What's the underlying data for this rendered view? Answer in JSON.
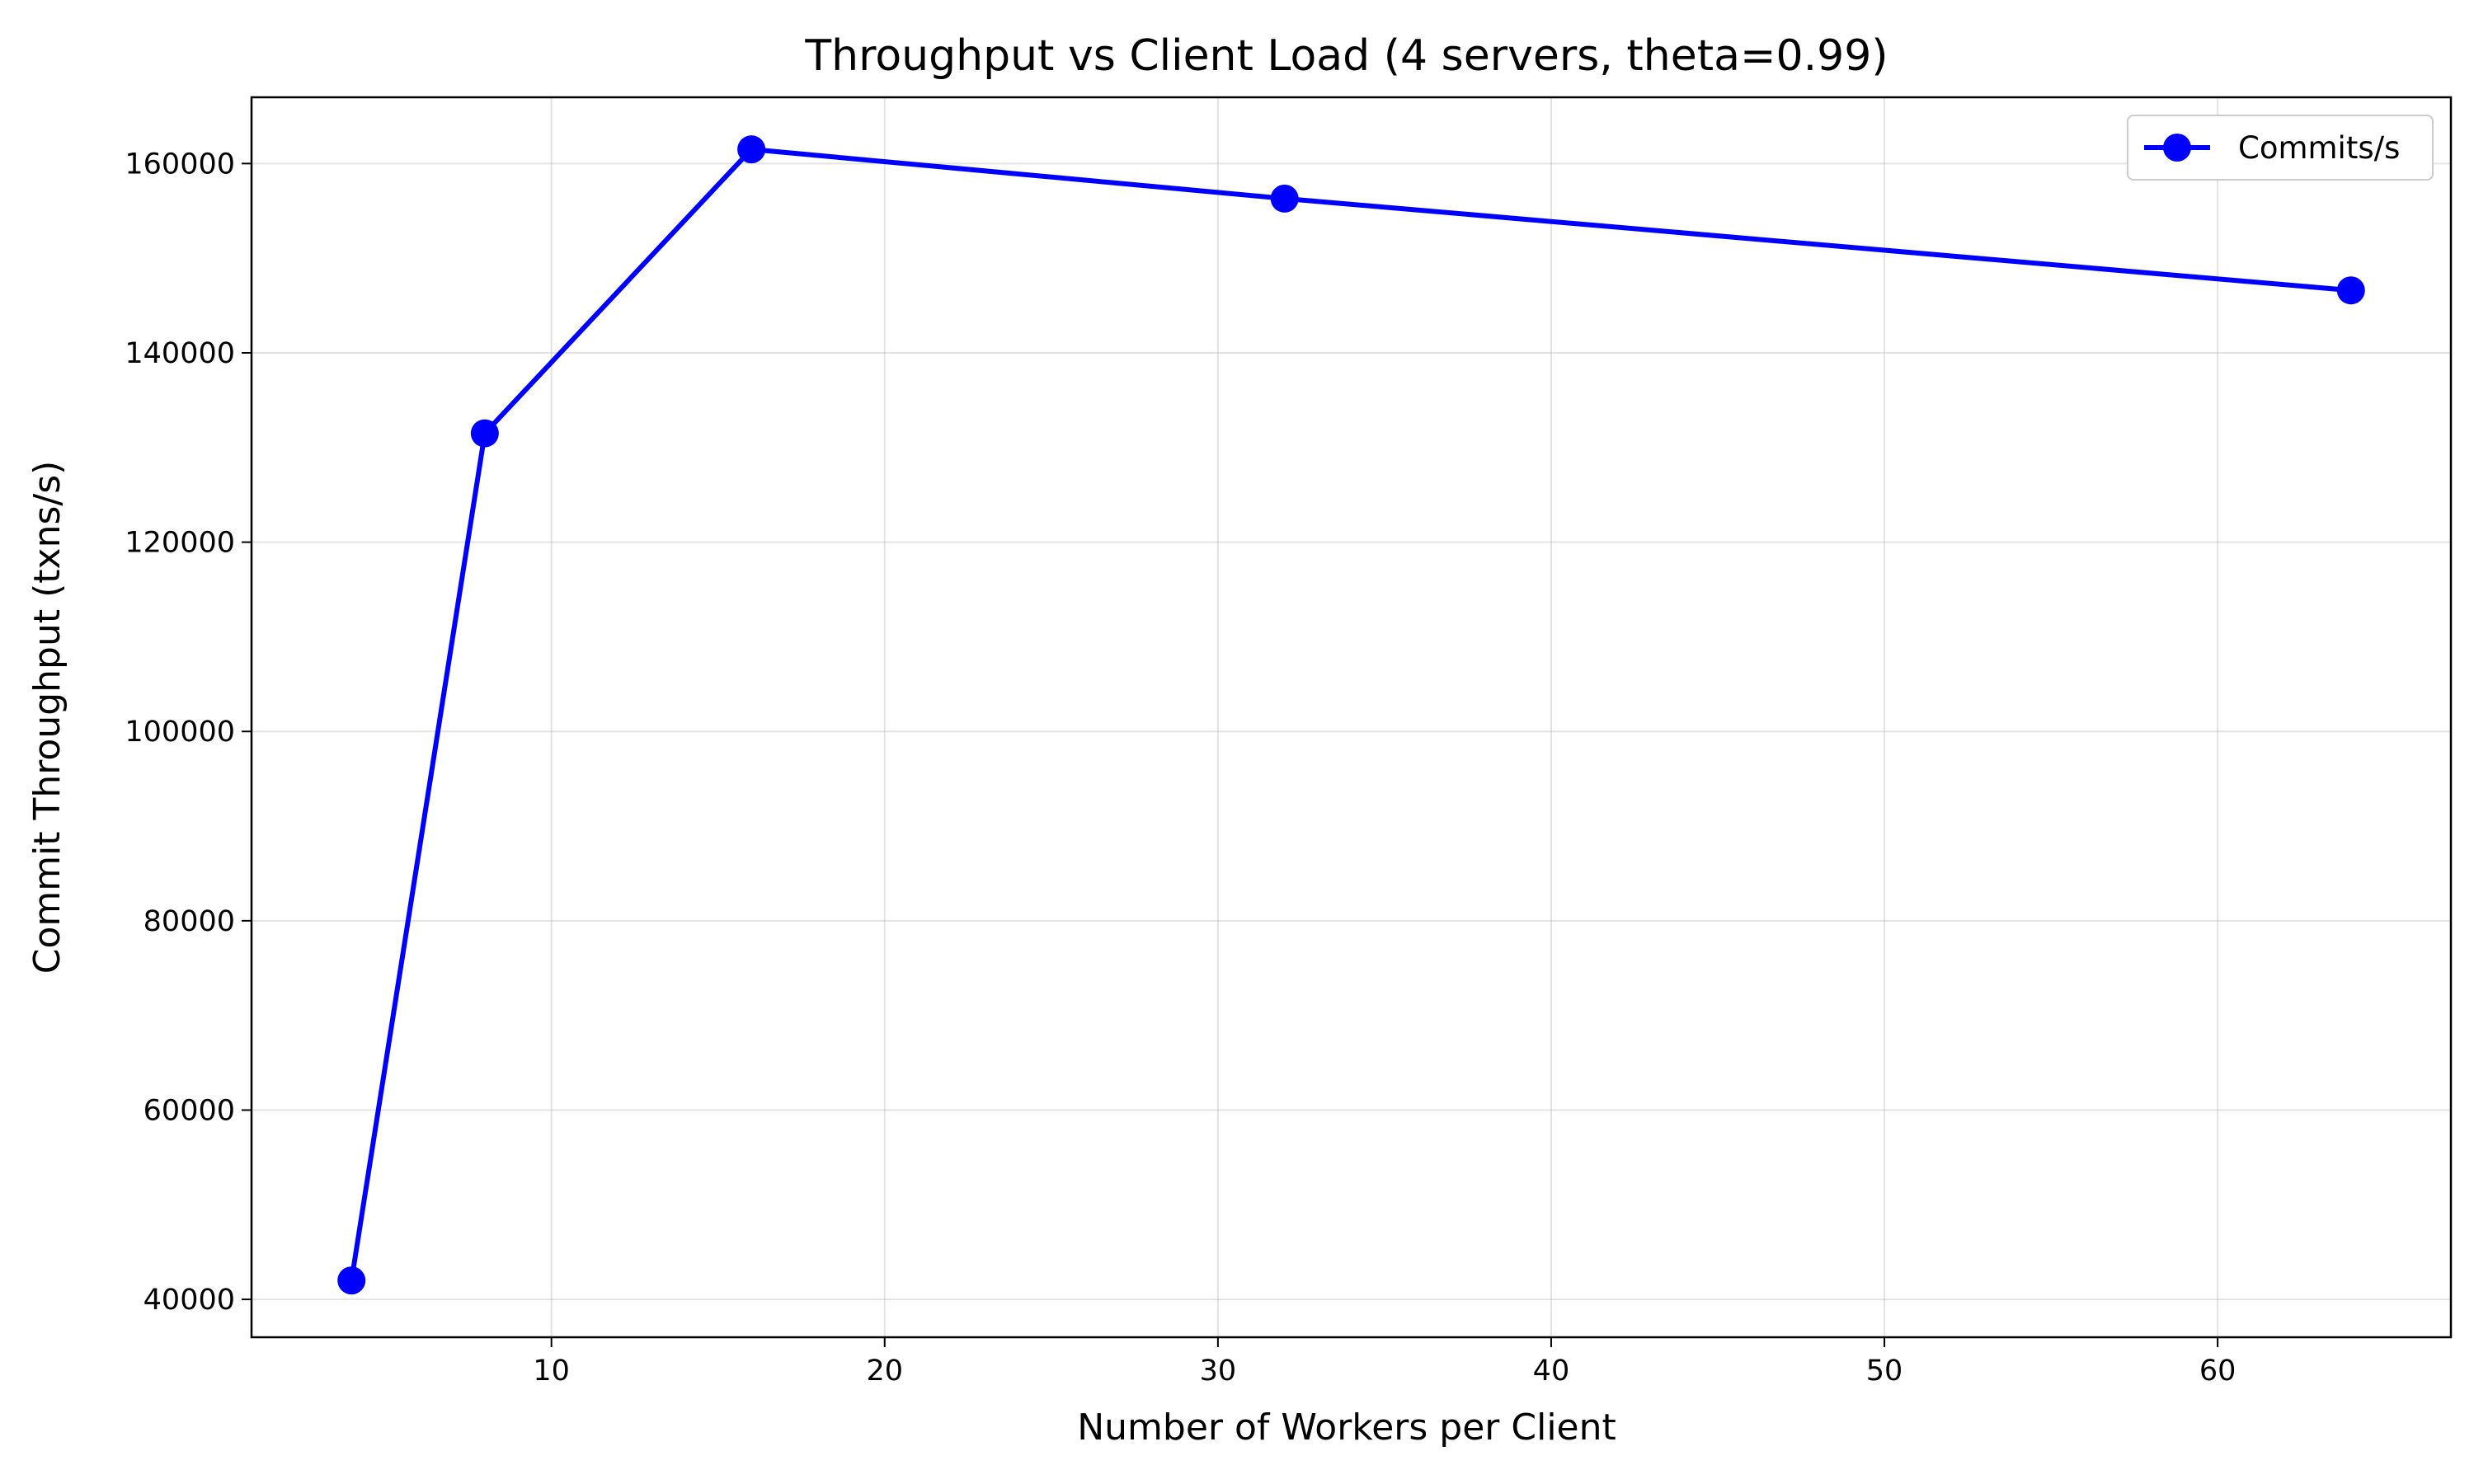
{
  "chart_data": {
    "type": "line",
    "title": "Throughput vs Client Load (4 servers, theta=0.99)",
    "xlabel": "Number of Workers per Client",
    "ylabel": "Commit Throughput (txns/s)",
    "xlim": [
      1,
      67
    ],
    "ylim": [
      36000,
      167000
    ],
    "x_ticks": [
      10,
      20,
      30,
      40,
      50,
      60
    ],
    "y_ticks": [
      40000,
      60000,
      80000,
      100000,
      120000,
      140000,
      160000
    ],
    "grid": true,
    "legend_position": "top-right",
    "series": [
      {
        "name": "Commits/s",
        "color": "#0000ff",
        "marker": "circle",
        "x": [
          4,
          8,
          16,
          32,
          64
        ],
        "y": [
          42000,
          131500,
          161500,
          156300,
          146600
        ]
      }
    ]
  }
}
